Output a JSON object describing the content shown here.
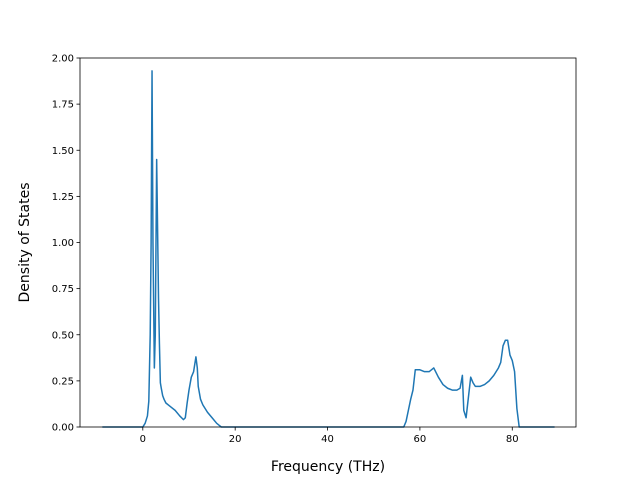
{
  "chart_data": {
    "type": "line",
    "title": "",
    "xlabel": "Frequency (THz)",
    "ylabel": "Density of States",
    "xlim": [
      -13.6,
      93.8
    ],
    "ylim": [
      0,
      2.0
    ],
    "xticks": [
      0,
      20,
      40,
      60,
      80
    ],
    "xtick_labels": [
      "0",
      "20",
      "40",
      "60",
      "80"
    ],
    "yticks": [
      0.0,
      0.25,
      0.5,
      0.75,
      1.0,
      1.25,
      1.5,
      1.75,
      2.0
    ],
    "ytick_labels": [
      "0.00",
      "0.25",
      "0.50",
      "0.75",
      "1.00",
      "1.25",
      "1.50",
      "1.75",
      "2.00"
    ],
    "grid": false,
    "line_color": "#1f77b4",
    "series": [
      {
        "x": [
          -8.6,
          -2.0,
          0.0,
          0.5,
          1.0,
          1.3,
          1.6,
          1.8,
          2.0,
          2.2,
          2.5,
          2.7,
          3.0,
          3.4,
          3.6,
          3.8,
          4.0,
          4.3,
          4.6,
          5.0,
          6.0,
          7.0,
          8.0,
          8.8,
          9.2,
          9.6,
          10.0,
          10.5,
          11.0,
          11.5,
          11.8,
          12.0,
          12.5,
          13.0,
          14.0,
          15.0,
          16.0,
          16.5,
          17.0,
          20.0,
          40.0,
          56.0,
          56.5,
          57.0,
          57.5,
          58.0,
          58.5,
          59.0,
          60.0,
          61.0,
          62.0,
          62.5,
          63.0,
          64.0,
          65.0,
          66.0,
          67.0,
          68.0,
          68.7,
          69.2,
          69.5,
          70.0,
          70.5,
          71.0,
          71.5,
          72.0,
          73.0,
          74.0,
          75.0,
          76.0,
          77.0,
          77.5,
          78.0,
          78.5,
          79.0,
          79.5,
          80.0,
          80.5,
          81.0,
          81.5,
          83.0,
          89.0
        ],
        "y": [
          0.0,
          0.0,
          0.0,
          0.02,
          0.06,
          0.14,
          0.5,
          1.0,
          1.93,
          1.0,
          0.32,
          0.5,
          1.45,
          0.7,
          0.45,
          0.24,
          0.21,
          0.17,
          0.15,
          0.13,
          0.11,
          0.09,
          0.06,
          0.04,
          0.05,
          0.13,
          0.2,
          0.27,
          0.3,
          0.38,
          0.32,
          0.22,
          0.15,
          0.12,
          0.08,
          0.05,
          0.02,
          0.01,
          0.0,
          0.0,
          0.0,
          0.0,
          0.0,
          0.03,
          0.09,
          0.15,
          0.2,
          0.31,
          0.31,
          0.3,
          0.3,
          0.31,
          0.32,
          0.27,
          0.23,
          0.21,
          0.2,
          0.2,
          0.21,
          0.28,
          0.09,
          0.05,
          0.16,
          0.27,
          0.24,
          0.22,
          0.22,
          0.23,
          0.25,
          0.28,
          0.32,
          0.35,
          0.44,
          0.47,
          0.47,
          0.39,
          0.36,
          0.3,
          0.1,
          0.0,
          0.0,
          0.0
        ]
      }
    ]
  }
}
